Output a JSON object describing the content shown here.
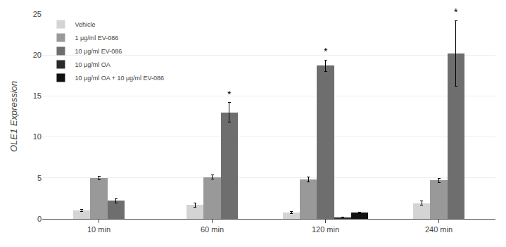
{
  "chart_data": {
    "type": "bar",
    "categories": [
      "10 min",
      "60 min",
      "120 min",
      "240 min"
    ],
    "series": [
      {
        "name": "Vehicle",
        "color": "#d4d4d4",
        "values": [
          1.0,
          1.7,
          0.8,
          1.9
        ],
        "errors": [
          0.12,
          0.25,
          0.12,
          0.25
        ]
      },
      {
        "name": "1 μg/ml EV-086",
        "color": "#999999",
        "values": [
          5.0,
          5.1,
          4.8,
          4.7
        ],
        "errors": [
          0.22,
          0.28,
          0.28,
          0.28
        ]
      },
      {
        "name": "10 μg/ml EV-086",
        "color": "#6e6e6e",
        "values": [
          2.2,
          13.0,
          18.7,
          20.2
        ],
        "errors": [
          0.25,
          1.2,
          0.7,
          4.0
        ]
      },
      {
        "name": "10 μg/ml OA",
        "color": "#2a2a2a",
        "values": [
          null,
          null,
          0.15,
          null
        ],
        "errors": [
          null,
          null,
          0.05,
          null
        ]
      },
      {
        "name": "10 μg/ml OA + 10 μg/ml EV-086",
        "color": "#111111",
        "values": [
          null,
          null,
          0.75,
          null
        ],
        "errors": [
          null,
          null,
          0.1,
          null
        ]
      }
    ],
    "ylabel": "OLE1 Expression",
    "ylim": [
      0,
      25
    ],
    "yticks": [
      0,
      5,
      10,
      15,
      20,
      25
    ],
    "grid": true,
    "legend": "upper left",
    "annotations": [
      {
        "text": "*",
        "series": "10 μg/ml EV-086",
        "category": "60 min"
      },
      {
        "text": "*",
        "series": "10 μg/ml EV-086",
        "category": "120 min"
      },
      {
        "text": "*",
        "series": "10 μg/ml EV-086",
        "category": "240 min"
      }
    ]
  }
}
